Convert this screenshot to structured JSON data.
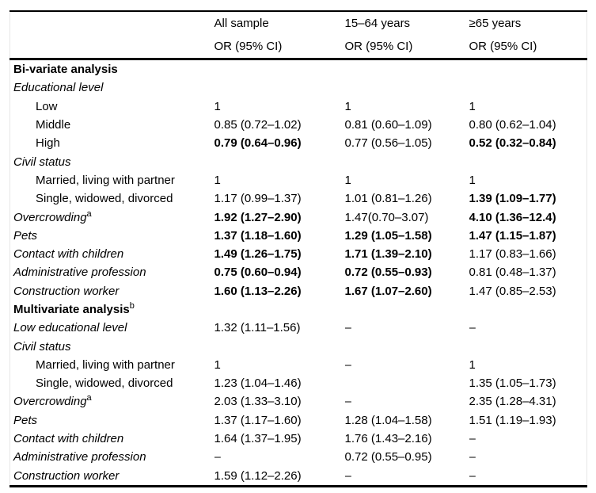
{
  "colors": {
    "background": "#ffffff",
    "text": "#000000",
    "rule": "#000000"
  },
  "table": {
    "columns": [
      {
        "label": "All sample",
        "sublabel": "OR (95% CI)"
      },
      {
        "label": "15–64 years",
        "sublabel": "OR (95% CI)"
      },
      {
        "label": "≥65 years",
        "sublabel": "OR (95% CI)"
      }
    ],
    "rows": [
      {
        "label": "Bi-variate analysis",
        "sup": "",
        "style": "section",
        "values": [
          "",
          "",
          ""
        ],
        "bold": [
          false,
          false,
          false
        ]
      },
      {
        "label": "Educational level",
        "sup": "",
        "style": "category",
        "values": [
          "",
          "",
          ""
        ],
        "bold": [
          false,
          false,
          false
        ]
      },
      {
        "label": "Low",
        "sup": "",
        "style": "item",
        "values": [
          "1",
          "1",
          "1"
        ],
        "bold": [
          false,
          false,
          false
        ]
      },
      {
        "label": "Middle",
        "sup": "",
        "style": "item",
        "values": [
          "0.85 (0.72–1.02)",
          "0.81 (0.60–1.09)",
          "0.80 (0.62–1.04)"
        ],
        "bold": [
          false,
          false,
          false
        ]
      },
      {
        "label": "High",
        "sup": "",
        "style": "item",
        "values": [
          "0.79 (0.64–0.96)",
          "0.77 (0.56–1.05)",
          "0.52 (0.32–0.84)"
        ],
        "bold": [
          true,
          false,
          true
        ]
      },
      {
        "label": "Civil status",
        "sup": "",
        "style": "category",
        "values": [
          "",
          "",
          ""
        ],
        "bold": [
          false,
          false,
          false
        ]
      },
      {
        "label": "Married, living with partner",
        "sup": "",
        "style": "item",
        "values": [
          "1",
          "1",
          "1"
        ],
        "bold": [
          false,
          false,
          false
        ]
      },
      {
        "label": "Single, widowed, divorced",
        "sup": "",
        "style": "item",
        "values": [
          "1.17 (0.99–1.37)",
          "1.01 (0.81–1.26)",
          "1.39 (1.09–1.77)"
        ],
        "bold": [
          false,
          false,
          true
        ]
      },
      {
        "label": "Overcrowding",
        "sup": "a",
        "style": "category",
        "values": [
          "1.92 (1.27–2.90)",
          "1.47(0.70–3.07)",
          "4.10 (1.36–12.4)"
        ],
        "bold": [
          true,
          false,
          true
        ]
      },
      {
        "label": "Pets",
        "sup": "",
        "style": "category",
        "values": [
          "1.37 (1.18–1.60)",
          "1.29 (1.05–1.58)",
          "1.47 (1.15–1.87)"
        ],
        "bold": [
          true,
          true,
          true
        ]
      },
      {
        "label": "Contact with children",
        "sup": "",
        "style": "category",
        "values": [
          "1.49 (1.26–1.75)",
          "1.71 (1.39–2.10)",
          "1.17 (0.83–1.66)"
        ],
        "bold": [
          true,
          true,
          false
        ]
      },
      {
        "label": "Administrative profession",
        "sup": "",
        "style": "category",
        "values": [
          "0.75 (0.60–0.94)",
          "0.72 (0.55–0.93)",
          "0.81 (0.48–1.37)"
        ],
        "bold": [
          true,
          true,
          false
        ]
      },
      {
        "label": "Construction worker",
        "sup": "",
        "style": "category",
        "values": [
          "1.60 (1.13–2.26)",
          "1.67 (1.07–2.60)",
          "1.47 (0.85–2.53)"
        ],
        "bold": [
          true,
          true,
          false
        ]
      },
      {
        "label": "Multivariate analysis",
        "sup": "b",
        "style": "section",
        "values": [
          "",
          "",
          ""
        ],
        "bold": [
          false,
          false,
          false
        ]
      },
      {
        "label": "Low educational level",
        "sup": "",
        "style": "category",
        "values": [
          "1.32 (1.11–1.56)",
          "–",
          "–"
        ],
        "bold": [
          false,
          false,
          false
        ]
      },
      {
        "label": "Civil status",
        "sup": "",
        "style": "category",
        "values": [
          "",
          "",
          ""
        ],
        "bold": [
          false,
          false,
          false
        ]
      },
      {
        "label": "Married, living with partner",
        "sup": "",
        "style": "item",
        "values": [
          "1",
          "–",
          "1"
        ],
        "bold": [
          false,
          false,
          false
        ]
      },
      {
        "label": "Single, widowed, divorced",
        "sup": "",
        "style": "item",
        "values": [
          "1.23 (1.04–1.46)",
          "",
          "1.35 (1.05–1.73)"
        ],
        "bold": [
          false,
          false,
          false
        ]
      },
      {
        "label": "Overcrowding",
        "sup": "a",
        "style": "category",
        "values": [
          "2.03 (1.33–3.10)",
          "–",
          "2.35 (1.28–4.31)"
        ],
        "bold": [
          false,
          false,
          false
        ]
      },
      {
        "label": "Pets",
        "sup": "",
        "style": "category",
        "values": [
          "1.37 (1.17–1.60)",
          "1.28 (1.04–1.58)",
          "1.51 (1.19–1.93)"
        ],
        "bold": [
          false,
          false,
          false
        ]
      },
      {
        "label": "Contact with children",
        "sup": "",
        "style": "category",
        "values": [
          "1.64 (1.37–1.95)",
          "1.76 (1.43–2.16)",
          "–"
        ],
        "bold": [
          false,
          false,
          false
        ]
      },
      {
        "label": "Administrative profession",
        "sup": "",
        "style": "category",
        "values": [
          "–",
          "0.72 (0.55–0.95)",
          "–"
        ],
        "bold": [
          false,
          false,
          false
        ]
      },
      {
        "label": "Construction worker",
        "sup": "",
        "style": "category",
        "values": [
          "1.59 (1.12–2.26)",
          "–",
          "–"
        ],
        "bold": [
          false,
          false,
          false
        ]
      }
    ]
  }
}
